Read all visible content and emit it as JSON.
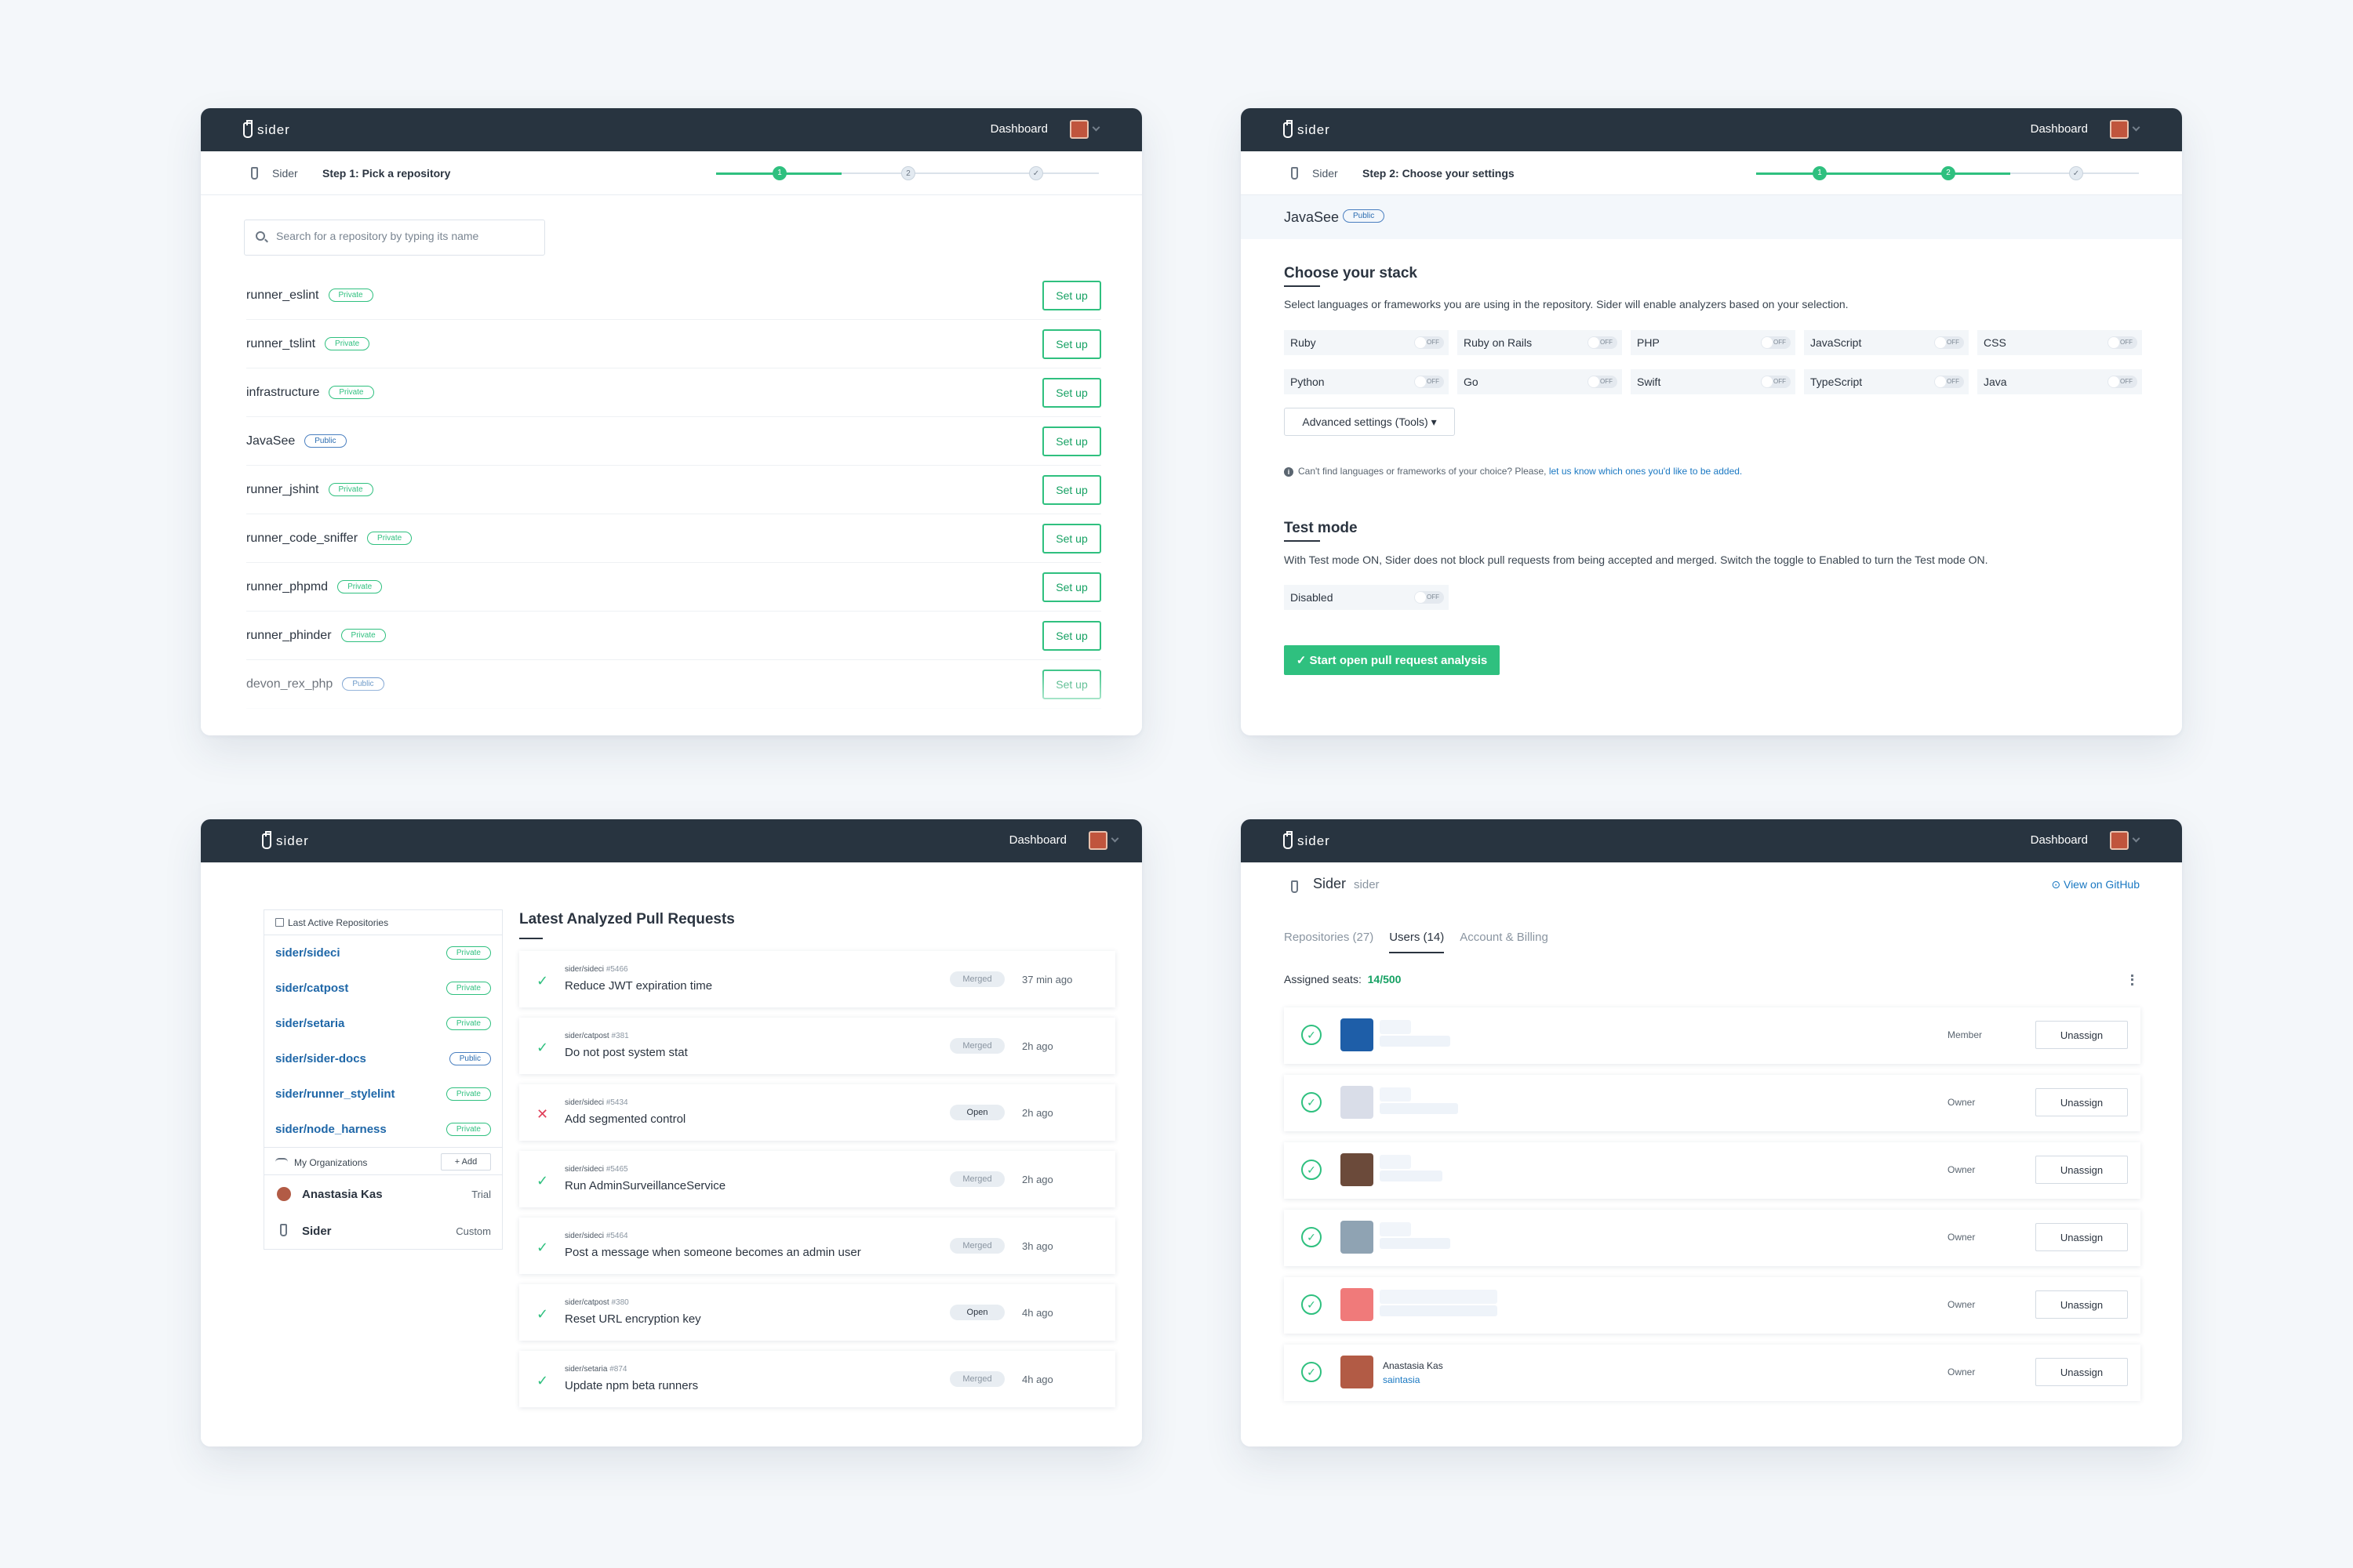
{
  "common": {
    "brand": "sider",
    "dashboard": "Dashboard",
    "org": "Sider"
  },
  "colors": {
    "accent": "#2fc07f",
    "topbar": "#283440",
    "link": "#1a78c2",
    "error": "#e0405a"
  },
  "panel1": {
    "step": "Step 1: Pick a repository",
    "progress": [
      "1",
      "2",
      "✓"
    ],
    "search_placeholder": "Search for a repository by typing its name",
    "setup_label": "Set up",
    "repos": [
      {
        "name": "runner_eslint",
        "visibility": "Private"
      },
      {
        "name": "runner_tslint",
        "visibility": "Private"
      },
      {
        "name": "infrastructure",
        "visibility": "Private"
      },
      {
        "name": "JavaSee",
        "visibility": "Public"
      },
      {
        "name": "runner_jshint",
        "visibility": "Private"
      },
      {
        "name": "runner_code_sniffer",
        "visibility": "Private"
      },
      {
        "name": "runner_phpmd",
        "visibility": "Private"
      },
      {
        "name": "runner_phinder",
        "visibility": "Private"
      },
      {
        "name": "devon_rex_php",
        "visibility": "Public"
      }
    ]
  },
  "panel2": {
    "step": "Step 2: Choose your settings",
    "progress": [
      "1",
      "2",
      "✓"
    ],
    "repo_name": "JavaSee",
    "repo_visibility": "Public",
    "stack_title": "Choose your stack",
    "stack_desc": "Select languages or frameworks you are using in the repository. Sider will enable analyzers based on your selection.",
    "languages": [
      "Ruby",
      "Ruby on Rails",
      "PHP",
      "JavaScript",
      "CSS",
      "Python",
      "Go",
      "Swift",
      "TypeScript",
      "Java"
    ],
    "off_label": "OFF",
    "advanced_label": "Advanced settings (Tools) ▾",
    "info_text": "Can't find languages or frameworks of your choice? Please,",
    "info_link": "let us know which ones you'd like to be added.",
    "test_title": "Test mode",
    "test_desc": "With Test mode ON, Sider does not block pull requests from being accepted and merged. Switch the toggle to Enabled to turn the Test mode ON.",
    "test_toggle_label": "Disabled",
    "start_button": "✓ Start open pull request analysis"
  },
  "panel3": {
    "sidebar_title": "Last Active Repositories",
    "repos": [
      {
        "name": "sider/sideci",
        "visibility": "Private"
      },
      {
        "name": "sider/catpost",
        "visibility": "Private"
      },
      {
        "name": "sider/setaria",
        "visibility": "Private"
      },
      {
        "name": "sider/sider-docs",
        "visibility": "Public"
      },
      {
        "name": "sider/runner_stylelint",
        "visibility": "Private"
      },
      {
        "name": "sider/node_harness",
        "visibility": "Private"
      }
    ],
    "orgs_title": "My Organizations",
    "add_label": "+ Add",
    "orgs": [
      {
        "name": "Anastasia Kas",
        "plan": "Trial"
      },
      {
        "name": "Sider",
        "plan": "Custom"
      }
    ],
    "pr_title": "Latest Analyzed Pull Requests",
    "prs": [
      {
        "repo": "sider/sideci",
        "num": "#5466",
        "title": "Reduce JWT expiration time",
        "status": "Merged",
        "ok": true,
        "ago": "37 min ago"
      },
      {
        "repo": "sider/catpost",
        "num": "#381",
        "title": "Do not post system stat",
        "status": "Merged",
        "ok": true,
        "ago": "2h ago"
      },
      {
        "repo": "sider/sideci",
        "num": "#5434",
        "title": "Add segmented control",
        "status": "Open",
        "ok": false,
        "ago": "2h ago"
      },
      {
        "repo": "sider/sideci",
        "num": "#5465",
        "title": "Run AdminSurveillanceService",
        "status": "Merged",
        "ok": true,
        "ago": "2h ago"
      },
      {
        "repo": "sider/sideci",
        "num": "#5464",
        "title": "Post a message when someone becomes an admin user",
        "status": "Merged",
        "ok": true,
        "ago": "3h ago"
      },
      {
        "repo": "sider/catpost",
        "num": "#380",
        "title": "Reset URL encryption key",
        "status": "Open",
        "ok": true,
        "ago": "4h ago"
      },
      {
        "repo": "sider/setaria",
        "num": "#874",
        "title": "Update npm beta runners",
        "status": "Merged",
        "ok": true,
        "ago": "4h ago"
      }
    ]
  },
  "panel4": {
    "org_title": "Sider",
    "org_sub": "sider",
    "github_link": "View on GitHub",
    "tabs": [
      "Repositories (27)",
      "Users (14)",
      "Account & Billing"
    ],
    "seats_label": "Assigned seats:",
    "seats_value": "14/500",
    "unassign_label": "Unassign",
    "users": [
      {
        "role": "Member",
        "name": "",
        "gh": "",
        "avatar": "#1e5ea8"
      },
      {
        "role": "Owner",
        "name": "",
        "gh": "",
        "avatar": "#d9dde8"
      },
      {
        "role": "Owner",
        "name": "",
        "gh": "",
        "avatar": "#6b4a3a"
      },
      {
        "role": "Owner",
        "name": "",
        "gh": "",
        "avatar": "#8fa3b3"
      },
      {
        "role": "Owner",
        "name": "",
        "gh": "",
        "avatar": "#f07a7a"
      },
      {
        "role": "Owner",
        "name": "Anastasia Kas",
        "gh": "saintasia",
        "avatar": "#b25b45"
      }
    ]
  }
}
